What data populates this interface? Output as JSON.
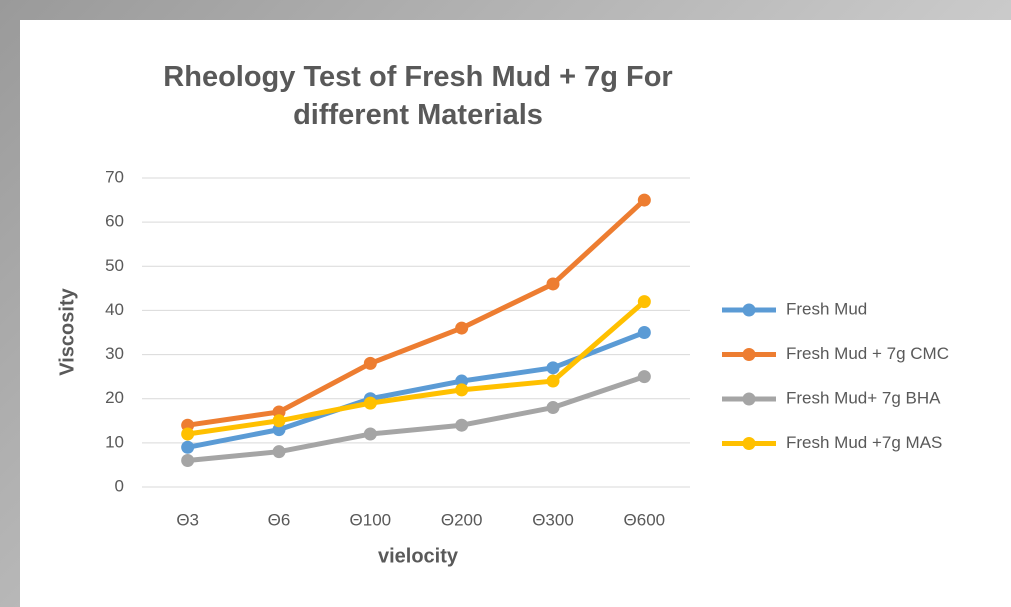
{
  "chart_data": {
    "type": "line",
    "title": "Rheology Test of Fresh Mud + 7g For different Materials",
    "x_label": "vielocity",
    "y_label": "Viscosity",
    "categories": [
      "Θ3",
      "Θ6",
      "Θ100",
      "Θ200",
      "Θ300",
      "Θ600"
    ],
    "series": [
      {
        "name": "Fresh Mud",
        "color": "#5b9bd5",
        "values": [
          9,
          13,
          20,
          24,
          27,
          35
        ]
      },
      {
        "name": "Fresh Mud + 7g CMC",
        "color": "#ed7d31",
        "values": [
          14,
          17,
          28,
          36,
          46,
          65
        ]
      },
      {
        "name": "Fresh Mud+ 7g BHA",
        "color": "#a5a5a5",
        "values": [
          6,
          8,
          12,
          14,
          18,
          25
        ]
      },
      {
        "name": "Fresh Mud +7g MAS",
        "color": "#ffc000",
        "values": [
          12,
          15,
          19,
          22,
          24,
          42
        ]
      }
    ],
    "ylim": [
      0,
      70
    ],
    "yticks": [
      0,
      10,
      20,
      30,
      40,
      50,
      60,
      70
    ],
    "grid": true,
    "legend": "right"
  }
}
